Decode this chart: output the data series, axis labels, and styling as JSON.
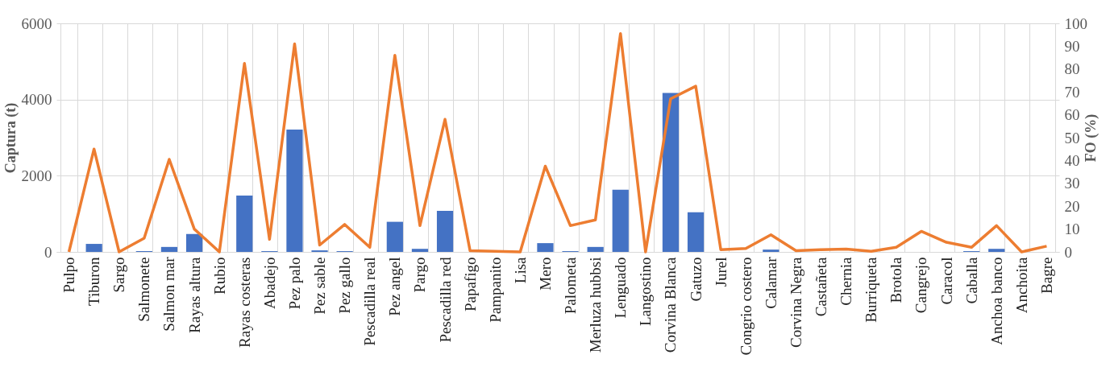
{
  "chart_data": {
    "type": "bar",
    "ylabel": "Captura (t)",
    "y2label": "FO (%)",
    "categories": [
      "Pulpo",
      "Tiburon",
      "Sargo",
      "Salmonete",
      "Salmon  mar",
      "Rayas  altura",
      "Rubio",
      "Rayas costeras",
      "Abadejo",
      "Pez palo",
      "Pez sable",
      "Pez gallo",
      "Pescadilla real",
      "Pez angel",
      "Pargo",
      "Pescadilla  red",
      "Papafigo",
      "Pampanito",
      "Lisa",
      "Mero",
      "Palometa",
      "Merluza hubbsi",
      "Lenguado",
      "Langostino",
      "Corvina Blanca",
      "Gatuzo",
      "Jurel",
      "Congrio costero",
      "Calamar",
      "Corvina Negra",
      "Castañeta",
      "Chernia",
      "Burriqueta",
      "Brotola",
      "Cangrejo",
      "Caracol",
      "Caballa",
      "Anchoa  banco",
      "Anchoita",
      "Bagre"
    ],
    "series": [
      {
        "color": "#4472c4",
        "values": [
          0,
          210,
          0,
          20,
          130,
          470,
          0,
          1480,
          20,
          3210,
          40,
          20,
          null,
          790,
          80,
          1080,
          0,
          0,
          0,
          230,
          20,
          130,
          1630,
          0,
          4170,
          1040,
          0,
          0,
          60,
          0,
          0,
          0,
          0,
          0,
          null,
          0,
          20,
          80,
          0,
          0
        ]
      },
      {
        "type": "line",
        "axis": "y2",
        "color": "#ed7d31",
        "values": [
          0,
          45,
          0,
          6,
          40.5,
          10,
          0,
          82.5,
          5.5,
          91,
          3,
          12,
          2,
          86,
          11.5,
          58,
          0.5,
          0.3,
          0,
          37.5,
          11.5,
          14,
          95.5,
          0,
          67,
          72.5,
          1,
          1.5,
          7.5,
          0.5,
          1,
          1.2,
          0.3,
          2,
          9,
          4.2,
          2,
          11.5,
          0,
          2.5
        ]
      }
    ],
    "ylim": [
      0,
      6000
    ],
    "yticks": [
      0,
      2000,
      4000,
      6000
    ],
    "y2lim": [
      0,
      100
    ],
    "y2ticks": [
      0,
      10,
      20,
      30,
      40,
      50,
      60,
      70,
      80,
      90,
      100
    ],
    "grid": true,
    "marker": "none",
    "line_style": "solid"
  }
}
